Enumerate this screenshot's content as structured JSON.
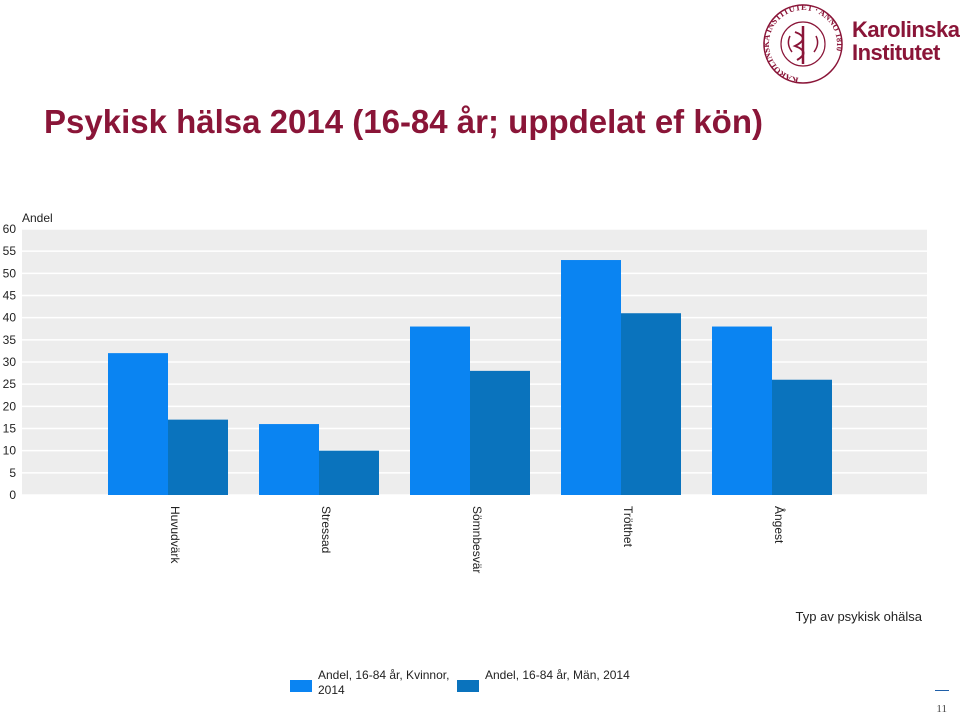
{
  "slide": {
    "title": "Psykisk hälsa 2014 (16-84 år; uppdelat ef kön)",
    "page_number": "11"
  },
  "logo": {
    "seal_text": "KAROLINSKA INSTITUTET · ANNO 1810",
    "line1": "Karolinska",
    "line2": "Institutet",
    "color": "#8a1538"
  },
  "chart_data": {
    "type": "bar",
    "ylabel": "Andel",
    "xlabel": "Typ av psykisk ohälsa",
    "ylim": [
      0,
      60
    ],
    "yticks": [
      0,
      5,
      10,
      15,
      20,
      25,
      30,
      35,
      40,
      45,
      50,
      55,
      60
    ],
    "grid": true,
    "legend_position": "bottom",
    "categories": [
      "Huvudvärk",
      "Stressad",
      "Sömnbesvär",
      "Trötthet",
      "Ångest"
    ],
    "series": [
      {
        "name": "Andel, 16-84 år, Kvinnor, 2014",
        "values": [
          32,
          16,
          38,
          53,
          38
        ],
        "color": "#0a84f2"
      },
      {
        "name": "Andel, 16-84 år, Män, 2014",
        "values": [
          17,
          10,
          28,
          41,
          26
        ],
        "color": "#0a73bd"
      }
    ]
  }
}
